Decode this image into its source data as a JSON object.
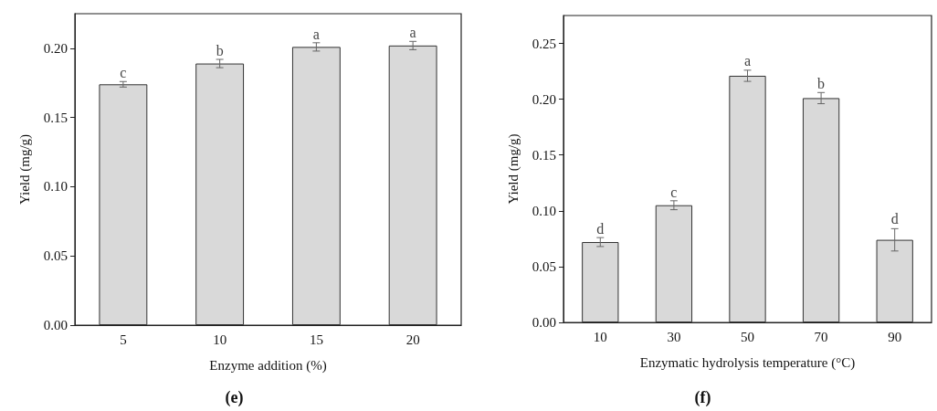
{
  "chart_data": [
    {
      "type": "bar",
      "xlabel": "Enzyme addition (%)",
      "ylabel": "Yield (mg/g)",
      "categories": [
        "5",
        "10",
        "15",
        "20"
      ],
      "series": [
        {
          "color": "#d9d9d9",
          "values": [
            0.174,
            0.189,
            0.201,
            0.202
          ],
          "errors": [
            0.002,
            0.003,
            0.003,
            0.003
          ]
        }
      ],
      "ylim": [
        0,
        0.225
      ],
      "yticks": [
        {
          "value": 0,
          "label": "0.00"
        },
        {
          "value": 0.05,
          "label": "0.05"
        },
        {
          "value": 0.1,
          "label": "0.10"
        },
        {
          "value": 0.15,
          "label": "0.15"
        },
        {
          "value": 0.2,
          "label": "0.20"
        }
      ],
      "grid": false,
      "annotations": [
        {
          "text": "c",
          "x": "5",
          "y": 0.176
        },
        {
          "text": "b",
          "x": "10",
          "y": 0.192
        },
        {
          "text": "a",
          "x": "15",
          "y": 0.2038
        },
        {
          "text": "a",
          "x": "20",
          "y": 0.2049
        },
        "(e)"
      ]
    },
    {
      "type": "bar",
      "xlabel": "Enzymatic hydrolysis temperature (°C)",
      "ylabel": "Yield (mg/g)",
      "categories": [
        "10",
        "30",
        "50",
        "70",
        "90"
      ],
      "series": [
        {
          "color": "#d9d9d9",
          "values": [
            0.072,
            0.105,
            0.221,
            0.201,
            0.074
          ],
          "errors": [
            0.004,
            0.004,
            0.005,
            0.005,
            0.01
          ]
        }
      ],
      "ylim": [
        0,
        0.275
      ],
      "yticks": [
        {
          "value": 0,
          "label": "0.00"
        },
        {
          "value": 0.05,
          "label": "0.05"
        },
        {
          "value": 0.1,
          "label": "0.10"
        },
        {
          "value": 0.15,
          "label": "0.15"
        },
        {
          "value": 0.2,
          "label": "0.20"
        },
        {
          "value": 0.25,
          "label": "0.25"
        }
      ],
      "grid": false,
      "annotations": [
        {
          "text": "d",
          "x": "10",
          "y": 0.0754
        },
        {
          "text": "c",
          "x": "30",
          "y": 0.1087
        },
        {
          "text": "a",
          "x": "50",
          "y": 0.2266
        },
        {
          "text": "b",
          "x": "70",
          "y": 0.2059
        },
        {
          "text": "d",
          "x": "90",
          "y": 0.0844
        },
        "(f)"
      ]
    }
  ]
}
